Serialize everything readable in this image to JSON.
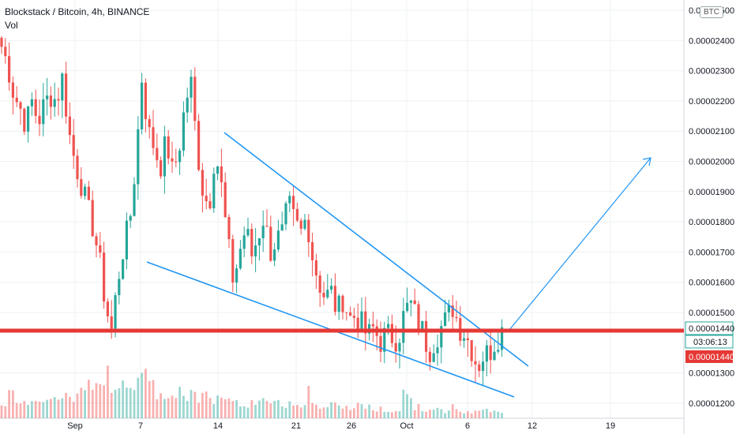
{
  "header": {
    "symbol": "Blockstack / Bitcoin, 4h, BINANCE",
    "volume_label": "Vol",
    "currency_badge": "BTC"
  },
  "colors": {
    "up": "#26a69a",
    "down": "#ef5350",
    "trendline": "#2196f3",
    "support": "#e53935",
    "grid": "#eef0f3",
    "axis_text": "#131722"
  },
  "chart_data": {
    "type": "candlestick",
    "title": "Blockstack / Bitcoin, 4h, BINANCE",
    "x_tick_labels": [
      "Sep",
      "7",
      "14",
      "21",
      "26",
      "Oct",
      "6",
      "12",
      "19"
    ],
    "y_tick_labels": [
      "0.00002500",
      "0.00002400",
      "0.00002300",
      "0.00002200",
      "0.00002100",
      "0.00002000",
      "0.00001900",
      "0.00001800",
      "0.00001700",
      "0.00001600",
      "0.00001500",
      "0.00001440",
      "0.00001300",
      "0.00001200"
    ],
    "ylim": [
      1.19e-05,
      2.54e-05
    ],
    "grid": true,
    "price_labels": {
      "last_price": "0.00001440",
      "countdown": "03:06:13",
      "alert_price": "0.00001440"
    },
    "support_level": 1.44e-05,
    "anchor_prices": [
      2.38e-05,
      2.32e-05,
      2.22e-05,
      2.18e-05,
      2.12e-05,
      2.2e-05,
      2.13e-05,
      2.19e-05,
      2.22e-05,
      2.2e-05,
      2.28e-05,
      2.1e-05,
      2e-05,
      1.93e-05,
      1.85e-05,
      1.78e-05,
      1.68e-05,
      1.53e-05,
      1.44e-05,
      1.6e-05,
      1.72e-05,
      1.8e-05,
      2e-05,
      2.28e-05,
      2.1e-05,
      2.05e-05,
      1.98e-05,
      2.07e-05,
      1.96e-05,
      2.03e-05,
      2.18e-05,
      2.27e-05,
      2.05e-05,
      1.9e-05,
      1.85e-05,
      2.04e-05,
      1.92e-05,
      1.74e-05,
      1.6e-05,
      1.7e-05,
      1.78e-05,
      1.69e-05,
      1.75e-05,
      1.82e-05,
      1.7e-05,
      1.74e-05,
      1.76e-05,
      1.86e-05,
      1.8e-05,
      1.76e-05,
      1.82e-05,
      1.68e-05,
      1.6e-05,
      1.55e-05,
      1.57e-05,
      1.5e-05,
      1.55e-05,
      1.48e-05,
      1.49e-05,
      1.46e-05,
      1.42e-05,
      1.45e-05,
      1.4e-05,
      1.43e-05,
      1.42e-05,
      1.41e-05,
      1.5e-05,
      1.53e-05,
      1.48e-05,
      1.44e-05,
      1.37e-05,
      1.41e-05,
      1.45e-05,
      1.48e-05,
      1.52e-05,
      1.45e-05,
      1.43e-05,
      1.38e-05,
      1.32e-05,
      1.36e-05,
      1.37e-05,
      1.41e-05,
      1.44e-05
    ],
    "volume_relative": [
      0.3,
      0.45,
      0.3,
      0.35,
      0.25,
      0.4,
      0.3,
      0.35,
      0.3,
      0.35,
      0.4,
      0.4,
      0.35,
      0.5,
      0.55,
      0.75,
      0.5,
      1.0,
      0.6,
      0.6,
      0.45,
      0.65,
      1.0,
      0.9,
      0.55,
      0.45,
      0.4,
      0.45,
      0.35,
      0.45,
      0.4,
      0.45,
      0.35,
      0.4,
      0.3,
      0.45,
      0.35,
      0.4,
      0.3,
      0.3,
      0.25,
      0.3,
      0.25,
      0.35,
      0.25,
      0.3,
      0.25,
      0.3,
      0.3,
      0.25,
      0.6,
      0.25,
      0.2,
      0.2,
      0.25,
      0.2,
      0.2,
      0.15,
      0.25,
      0.2,
      0.2,
      0.15,
      0.2,
      0.15,
      0.15,
      0.15,
      0.55,
      0.3,
      0.2,
      0.15,
      0.2,
      0.15,
      0.15,
      0.12,
      0.2,
      0.1,
      0.1,
      0.1,
      0.12,
      0.15,
      0.1,
      0.12,
      0.12
    ]
  }
}
